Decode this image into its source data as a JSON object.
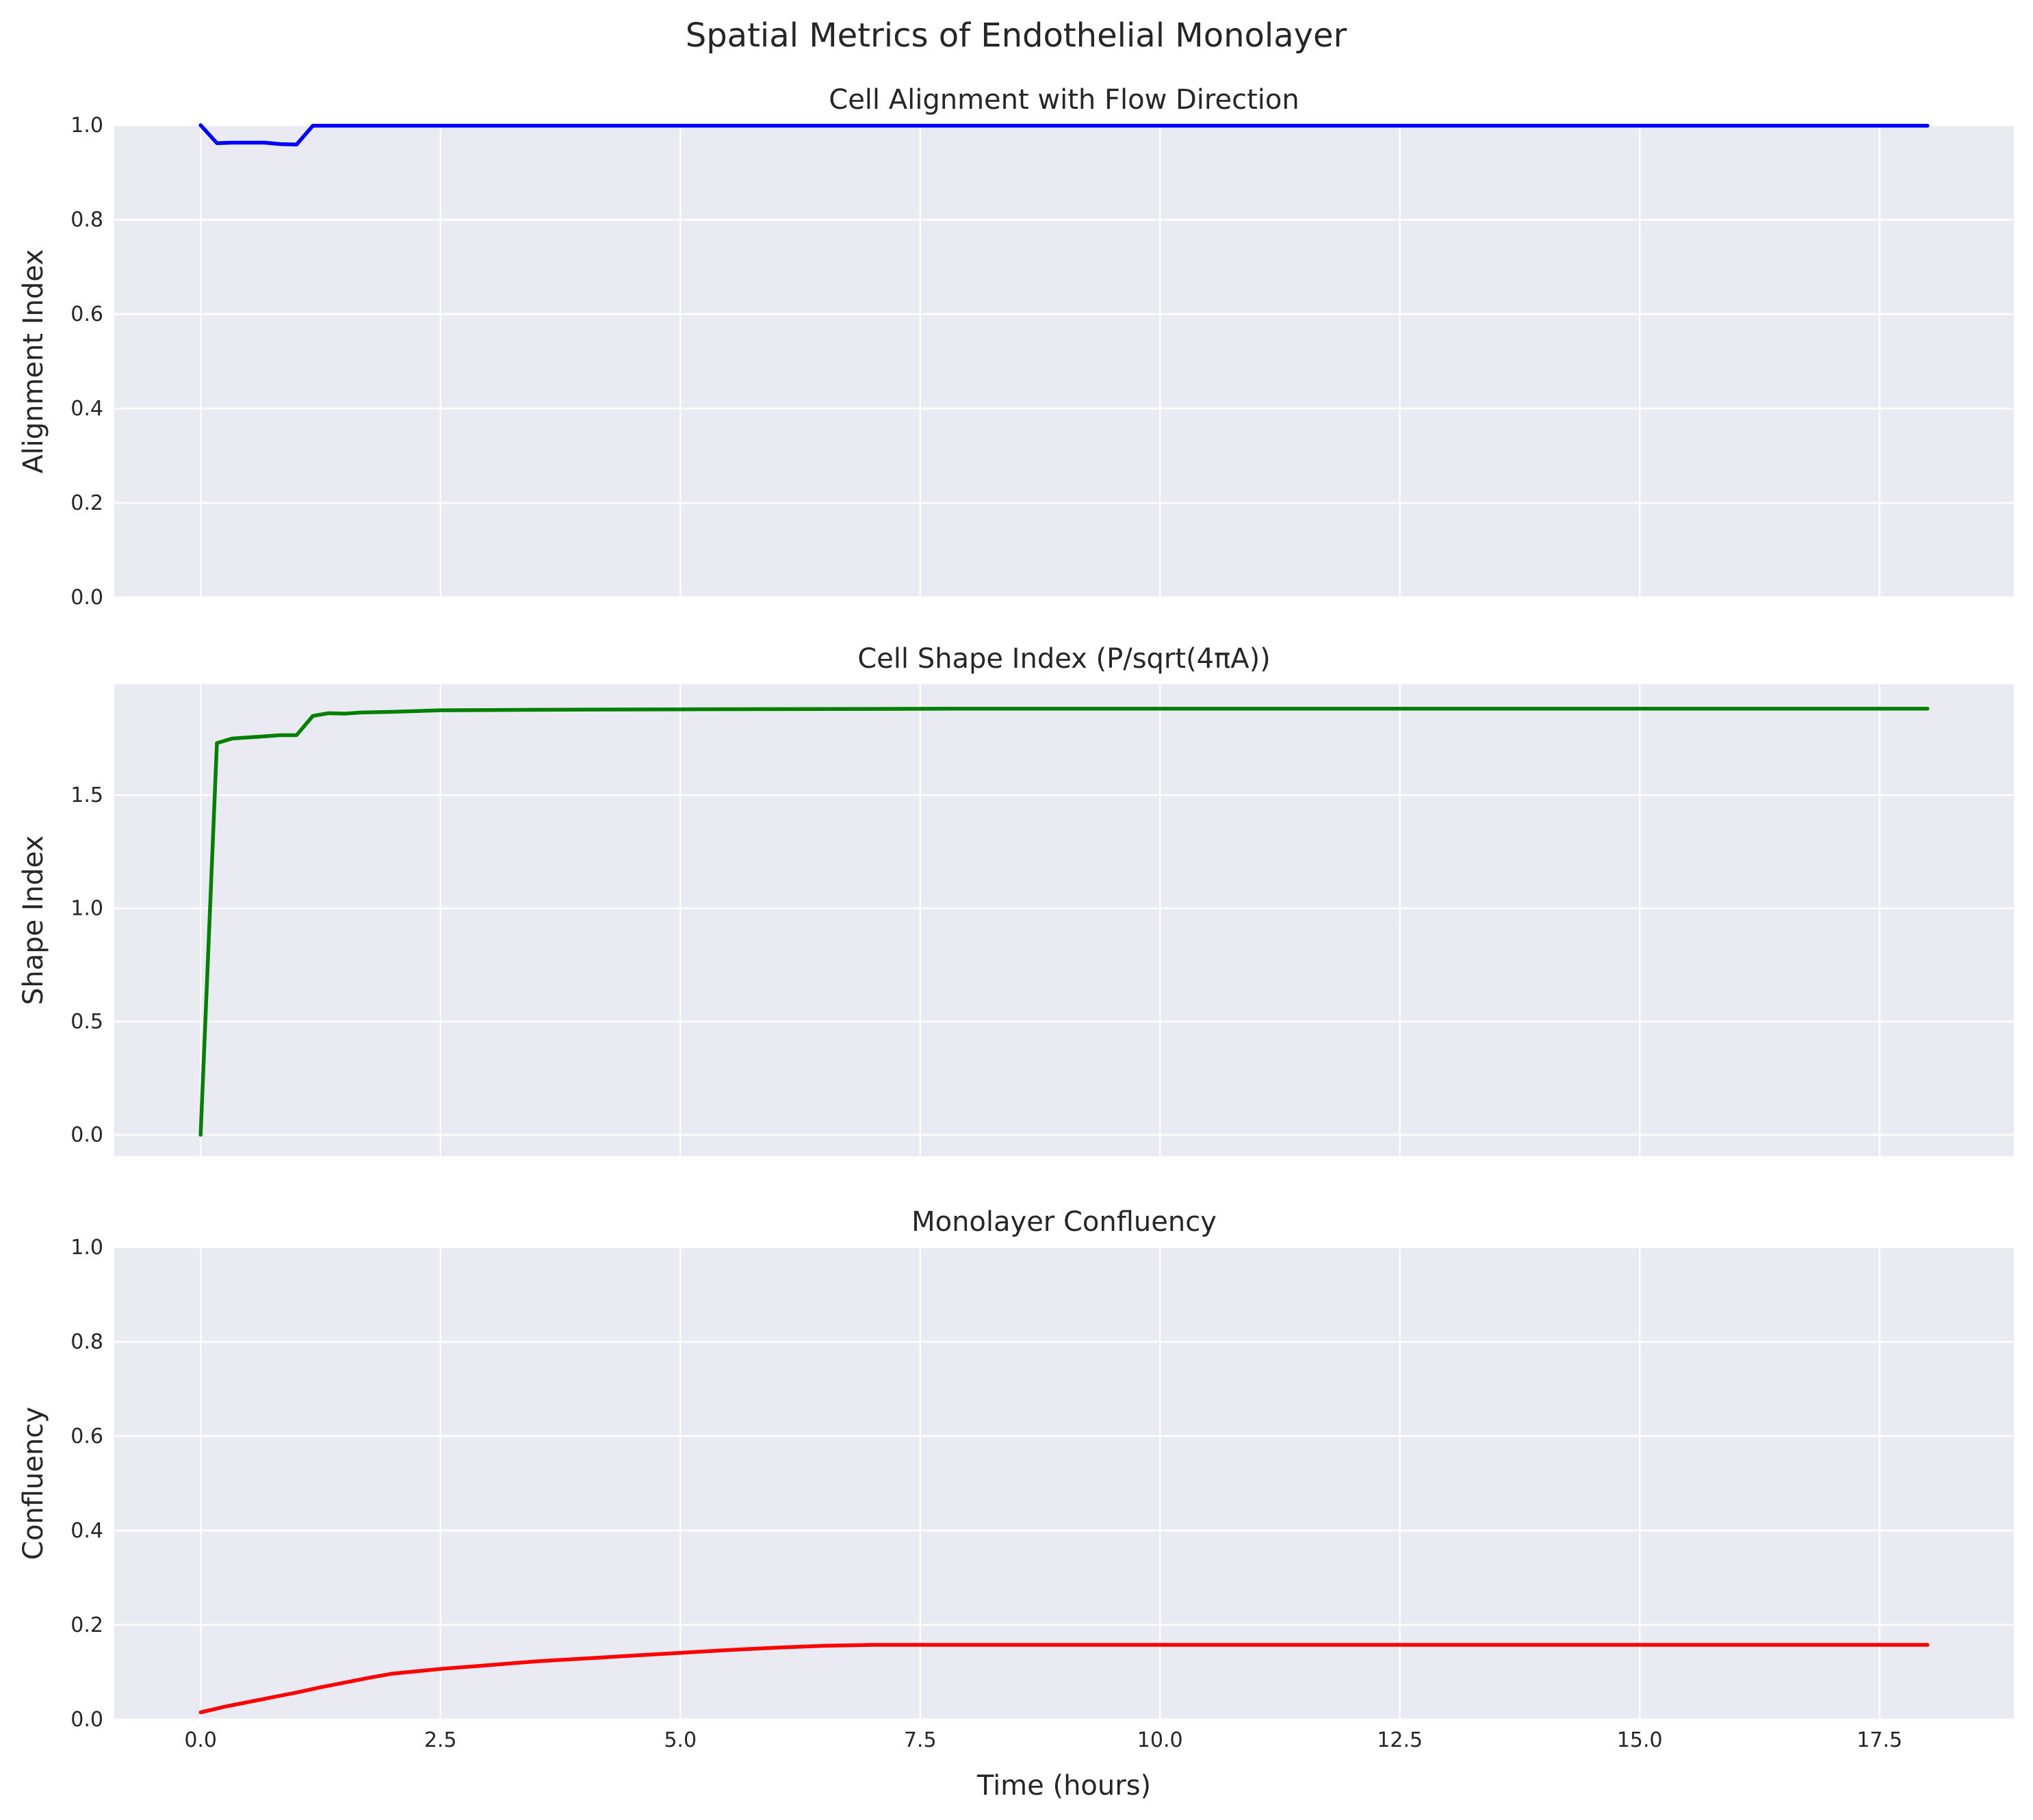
{
  "figure": {
    "title": "Spatial Metrics of Endothelial Monolayer"
  },
  "chart_data": [
    {
      "type": "line",
      "title": "Cell Alignment with Flow Direction",
      "xlabel": "",
      "ylabel": "Alignment Index",
      "xlim": [
        -0.9,
        18.9
      ],
      "ylim": [
        0,
        1.0
      ],
      "x_ticks": [
        0.0,
        2.5,
        5.0,
        7.5,
        10.0,
        12.5,
        15.0,
        17.5
      ],
      "x_tick_labels_visible": false,
      "y_ticks": [
        0.0,
        0.2,
        0.4,
        0.6,
        0.8,
        1.0
      ],
      "y_tick_labels": [
        "0.0",
        "0.2",
        "0.4",
        "0.6",
        "0.8",
        "1.0"
      ],
      "grid": true,
      "color": "#0000ff",
      "series": [
        {
          "x": [
            0.0,
            0.17,
            0.33,
            0.5,
            0.67,
            0.83,
            1.0,
            1.17,
            1.33,
            1.67,
            2.0,
            2.5,
            3.0,
            4.0,
            5.0,
            6.0,
            8.0,
            10.0,
            12.0,
            14.0,
            16.0,
            18.0
          ],
          "y": [
            1.0,
            0.962,
            0.963,
            0.963,
            0.963,
            0.96,
            0.959,
            0.999,
            0.999,
            0.999,
            0.999,
            0.999,
            0.999,
            0.999,
            0.999,
            0.999,
            0.999,
            0.999,
            0.999,
            0.999,
            0.999,
            0.999
          ]
        }
      ]
    },
    {
      "type": "line",
      "title": "Cell Shape Index (P/sqrt(4πA))",
      "xlabel": "",
      "ylabel": "Shape Index",
      "xlim": [
        -0.9,
        18.9
      ],
      "ylim": [
        -0.095,
        1.99
      ],
      "x_ticks": [
        0.0,
        2.5,
        5.0,
        7.5,
        10.0,
        12.5,
        15.0,
        17.5
      ],
      "x_tick_labels_visible": false,
      "y_ticks": [
        0.0,
        0.5,
        1.0,
        1.5
      ],
      "y_tick_labels": [
        "0.0",
        "0.5",
        "1.0",
        "1.5"
      ],
      "grid": true,
      "color": "#008000",
      "series": [
        {
          "x": [
            0.0,
            0.17,
            0.33,
            0.5,
            0.67,
            0.83,
            1.0,
            1.17,
            1.33,
            1.5,
            1.67,
            2.0,
            2.5,
            3.0,
            3.5,
            4.0,
            5.0,
            6.0,
            7.0,
            8.0,
            10.0,
            12.0,
            14.0,
            16.0,
            18.0
          ],
          "y": [
            0.0,
            1.73,
            1.75,
            1.755,
            1.76,
            1.765,
            1.765,
            1.85,
            1.862,
            1.86,
            1.865,
            1.868,
            1.875,
            1.876,
            1.877,
            1.878,
            1.879,
            1.88,
            1.881,
            1.882,
            1.882,
            1.882,
            1.882,
            1.882,
            1.882
          ]
        }
      ]
    },
    {
      "type": "line",
      "title": "Monolayer Confluency",
      "xlabel": "Time (hours)",
      "ylabel": "Confluency",
      "xlim": [
        -0.9,
        18.9
      ],
      "ylim": [
        0,
        1.0
      ],
      "x_ticks": [
        0.0,
        2.5,
        5.0,
        7.5,
        10.0,
        12.5,
        15.0,
        17.5
      ],
      "x_tick_labels": [
        "0.0",
        "2.5",
        "5.0",
        "7.5",
        "10.0",
        "12.5",
        "15.0",
        "17.5"
      ],
      "y_ticks": [
        0.0,
        0.2,
        0.4,
        0.6,
        0.8,
        1.0
      ],
      "y_tick_labels": [
        "0.0",
        "0.2",
        "0.4",
        "0.6",
        "0.8",
        "1.0"
      ],
      "grid": true,
      "color": "#ff0000",
      "series": [
        {
          "x": [
            0.0,
            0.25,
            0.5,
            0.75,
            1.0,
            1.25,
            1.5,
            1.75,
            2.0,
            2.5,
            3.0,
            3.5,
            4.0,
            4.5,
            5.0,
            5.5,
            6.0,
            6.5,
            7.0,
            8.0,
            10.0,
            12.0,
            14.0,
            16.0,
            18.0
          ],
          "y": [
            0.015,
            0.027,
            0.037,
            0.047,
            0.057,
            0.068,
            0.078,
            0.088,
            0.097,
            0.107,
            0.115,
            0.123,
            0.129,
            0.135,
            0.141,
            0.147,
            0.152,
            0.156,
            0.158,
            0.158,
            0.158,
            0.158,
            0.158,
            0.158,
            0.158
          ]
        }
      ]
    }
  ]
}
